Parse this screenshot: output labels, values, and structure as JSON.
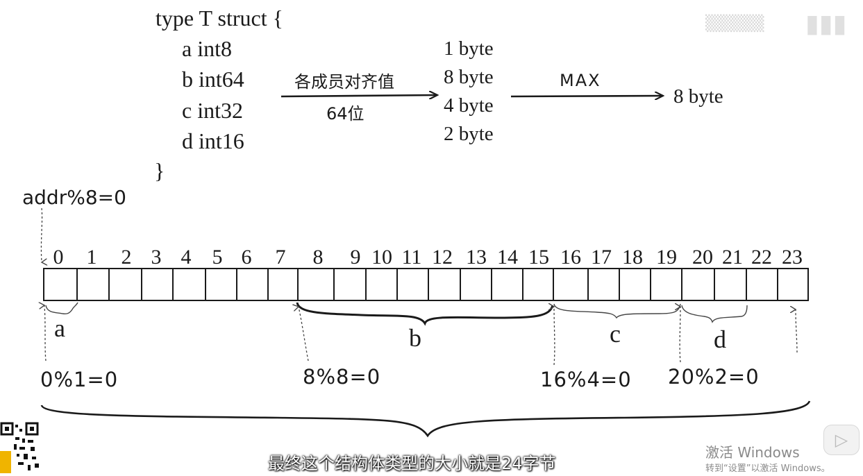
{
  "struct": {
    "open": "type T struct {",
    "fields": [
      "a int8",
      "b int64",
      "c int32",
      "d int16"
    ],
    "close": "}"
  },
  "alignments": [
    "1 byte",
    "8 byte",
    "4 byte",
    "2 byte"
  ],
  "arrow1": {
    "top_label": "各成员对齐值",
    "bottom_label": "64位"
  },
  "arrow2": {
    "label": "MAX",
    "result": "8 byte"
  },
  "addr_label": "addr%8=0",
  "indices": [
    "0",
    "1",
    "2",
    "3",
    "4",
    "5",
    "6",
    "7",
    "8",
    "9",
    "10",
    "11",
    "12",
    "13",
    "14",
    "15",
    "16",
    "17",
    "18",
    "19",
    "20",
    "21",
    "22",
    "23"
  ],
  "field_labels": {
    "a": "a",
    "b": "b",
    "c": "c",
    "d": "d"
  },
  "conditions": [
    "0%1=0",
    "8%8=0",
    "16%4=0",
    "20%2=0"
  ],
  "subtitle": "最终这个结构体类型的大小就是24字节",
  "watermark": {
    "activate_title": "激活 Windows",
    "activate_sub": "转到“设置”以激活 Windows。"
  },
  "colors": {
    "ink": "#1a1a1a",
    "subtitle_text": "#ffffff",
    "qr_accent": "#f0b400"
  }
}
